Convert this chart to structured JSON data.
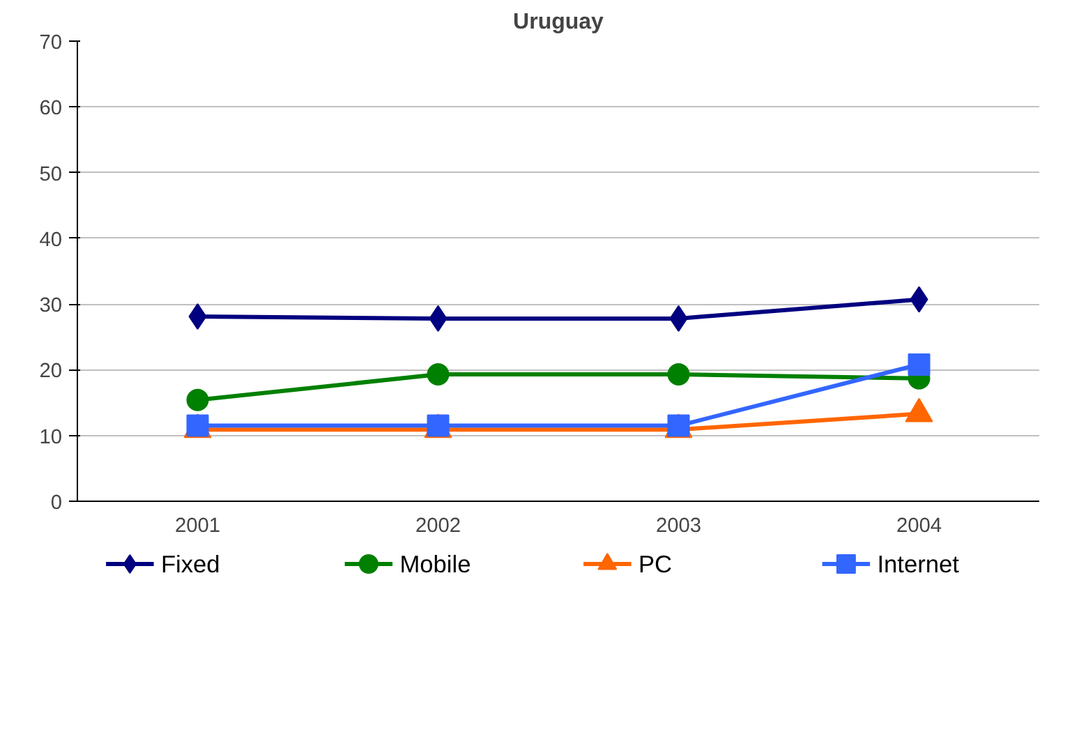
{
  "chart_data": {
    "type": "line",
    "title": "Uruguay",
    "categories": [
      "2001",
      "2002",
      "2003",
      "2004"
    ],
    "series": [
      {
        "name": "Fixed",
        "color": "#000080",
        "marker": "diamond",
        "values": [
          28.1,
          27.8,
          27.8,
          30.7
        ]
      },
      {
        "name": "Mobile",
        "color": "#008000",
        "marker": "circle",
        "values": [
          15.4,
          19.3,
          19.3,
          18.7
        ]
      },
      {
        "name": "PC",
        "color": "#ff6600",
        "marker": "triangle",
        "values": [
          10.9,
          10.9,
          10.9,
          13.3
        ]
      },
      {
        "name": "Internet",
        "color": "#3366ff",
        "marker": "square",
        "values": [
          11.5,
          11.5,
          11.5,
          20.8
        ]
      }
    ],
    "ylim": [
      0,
      70
    ],
    "yticks": [
      0,
      10,
      20,
      30,
      40,
      50,
      60,
      70
    ],
    "grid": "y",
    "legend": "bottom"
  }
}
